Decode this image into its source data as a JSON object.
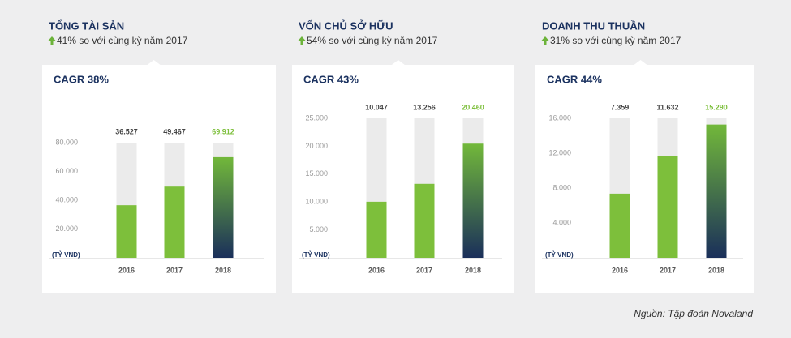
{
  "chart_data": [
    {
      "type": "bar",
      "title": "TỔNG TÀI SẢN",
      "subtitle": "41% so với cùng kỳ năm 2017",
      "annotation": "CAGR 38%",
      "y_label": "(TỶ VND)",
      "categories": [
        "2016",
        "2017",
        "2018"
      ],
      "values": [
        36527,
        49467,
        69912
      ],
      "value_labels": [
        "36.527",
        "49.467",
        "69.912"
      ],
      "bar_colors": [
        [
          "#7dbf3b"
        ],
        [
          "#7dbf3b"
        ],
        [
          "#72b83a",
          "#1a2f5a"
        ]
      ],
      "value_label_colors": [
        "#444444",
        "#444444",
        "#7dbf3b"
      ],
      "ylim": [
        0,
        80000
      ],
      "yticks": [
        {
          "value": 20000,
          "label": "20.000"
        },
        {
          "value": 40000,
          "label": "40.000"
        },
        {
          "value": 60000,
          "label": "60.000"
        },
        {
          "value": 80000,
          "label": "80.000"
        }
      ]
    },
    {
      "type": "bar",
      "title": "VỐN CHỦ SỞ HỮU",
      "subtitle": "54% so với cùng kỳ năm 2017",
      "annotation": "CAGR 43%",
      "y_label": "(TỶ VND)",
      "categories": [
        "2016",
        "2017",
        "2018"
      ],
      "values": [
        10047,
        13256,
        20460
      ],
      "value_labels": [
        "10.047",
        "13.256",
        "20.460"
      ],
      "bar_colors": [
        [
          "#7dbf3b"
        ],
        [
          "#7dbf3b"
        ],
        [
          "#72b83a",
          "#1a2f5a"
        ]
      ],
      "value_label_colors": [
        "#444444",
        "#444444",
        "#7dbf3b"
      ],
      "ylim": [
        0,
        25000
      ],
      "yticks": [
        {
          "value": 5000,
          "label": "5.000"
        },
        {
          "value": 10000,
          "label": "10.000"
        },
        {
          "value": 15000,
          "label": "15.000"
        },
        {
          "value": 20000,
          "label": "20.000"
        },
        {
          "value": 25000,
          "label": "25.000"
        }
      ]
    },
    {
      "type": "bar",
      "title": "DOANH THU THUẦN",
      "subtitle": "31% so với cùng kỳ năm 2017",
      "annotation": "CAGR 44%",
      "y_label": "(TỶ VND)",
      "categories": [
        "2016",
        "2017",
        "2018"
      ],
      "values": [
        7359,
        11632,
        15290
      ],
      "value_labels": [
        "7.359",
        "11.632",
        "15.290"
      ],
      "bar_colors": [
        [
          "#7dbf3b"
        ],
        [
          "#7dbf3b"
        ],
        [
          "#72b83a",
          "#1a2f5a"
        ]
      ],
      "value_label_colors": [
        "#444444",
        "#444444",
        "#7dbf3b"
      ],
      "ylim": [
        0,
        16000
      ],
      "yticks": [
        {
          "value": 4000,
          "label": "4.000"
        },
        {
          "value": 8000,
          "label": "8.000"
        },
        {
          "value": 12000,
          "label": "12.000"
        },
        {
          "value": 16000,
          "label": "16.000"
        }
      ]
    }
  ],
  "source": "Nguồn: Tập đoàn Novaland"
}
